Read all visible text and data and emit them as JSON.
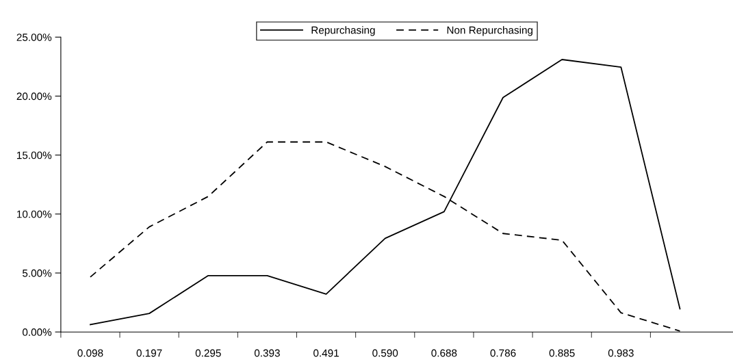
{
  "chart_data": {
    "type": "line",
    "categories": [
      "0.098",
      "0.197",
      "0.295",
      "0.393",
      "0.491",
      "0.590",
      "0.688",
      "0.786",
      "0.885",
      "0.983",
      null
    ],
    "series": [
      {
        "name": "Repurchasing",
        "color": "#000000",
        "line_style": "solid",
        "values": [
          0.63,
          1.57,
          4.78,
          4.78,
          3.21,
          7.94,
          10.2,
          19.88,
          23.1,
          22.46,
          1.96
        ]
      },
      {
        "name": "Non Repurchasing",
        "color": "#000000",
        "line_style": "dashed",
        "values": [
          4.66,
          8.91,
          11.49,
          16.11,
          16.11,
          14.03,
          11.49,
          8.35,
          7.78,
          1.63,
          0.08
        ]
      }
    ],
    "ylim": [
      0,
      25
    ],
    "yticks": [
      {
        "value": 0,
        "label": "0.00%"
      },
      {
        "value": 5,
        "label": "5.00%"
      },
      {
        "value": 10,
        "label": "10.00%"
      },
      {
        "value": 15,
        "label": "15.00%"
      },
      {
        "value": 20,
        "label": "20.00%"
      },
      {
        "value": 25,
        "label": "25.00%"
      }
    ],
    "grid": false,
    "legend": "top",
    "marker": "none"
  }
}
